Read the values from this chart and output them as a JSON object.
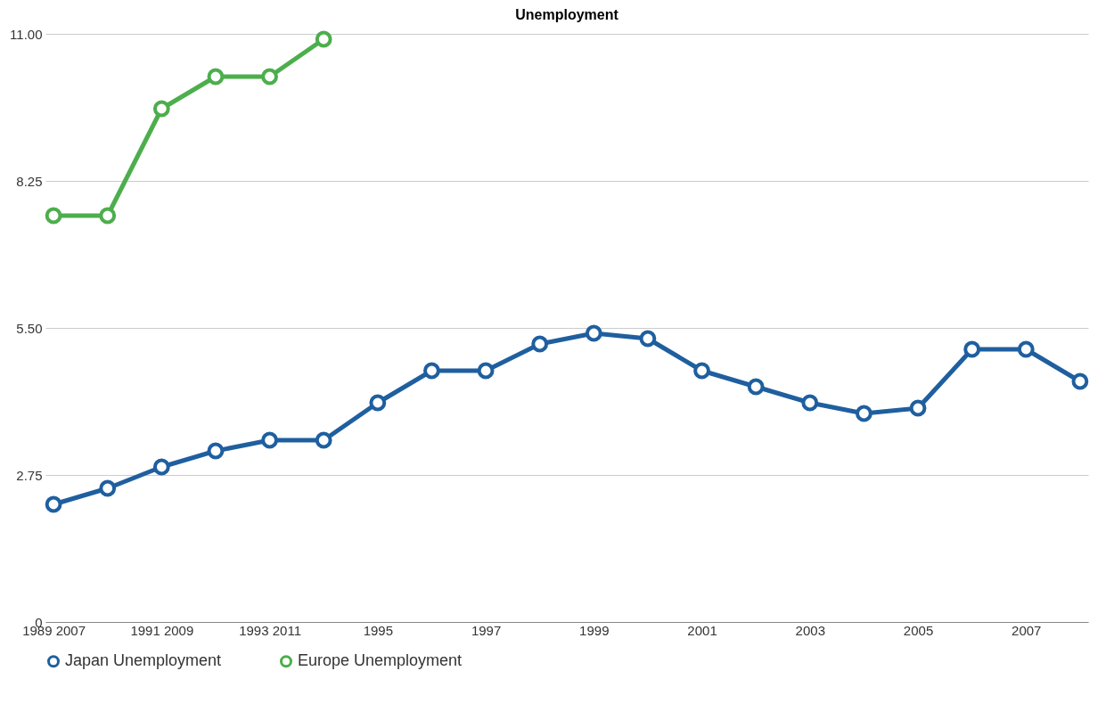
{
  "chart_data": {
    "type": "line",
    "title": "Unemployment",
    "categories": [
      "1989 2007",
      null,
      "1991 2009",
      null,
      "1993 2011",
      null,
      "1995",
      null,
      "1997",
      null,
      "1999",
      null,
      "2001",
      null,
      "2003",
      null,
      "2005",
      null,
      "2007",
      null
    ],
    "series": [
      {
        "name": "Japan Unemployment",
        "color": "#1f5f9f",
        "values": [
          2.2,
          2.5,
          2.9,
          3.2,
          3.4,
          3.4,
          4.1,
          4.7,
          4.7,
          5.2,
          5.4,
          5.3,
          4.7,
          4.4,
          4.1,
          3.9,
          4.0,
          5.1,
          5.1,
          4.5
        ]
      },
      {
        "name": "Europe Unemployment",
        "color": "#4cae4c",
        "values": [
          7.6,
          7.6,
          9.6,
          10.2,
          10.2,
          10.9,
          null,
          null,
          null,
          null,
          null,
          null,
          null,
          null,
          null,
          null,
          null,
          null,
          null,
          null
        ]
      }
    ],
    "ylim": [
      0,
      11
    ],
    "yticks": [
      0,
      {
        "value": 2.75,
        "label": "2.75"
      },
      {
        "value": 5.5,
        "label": "5.50"
      },
      {
        "value": 8.25,
        "label": "8.25"
      },
      {
        "value": 11,
        "label": "11.00"
      }
    ],
    "grid": "y",
    "legend": "bottom",
    "marker": "circle",
    "line_style": "solid"
  }
}
